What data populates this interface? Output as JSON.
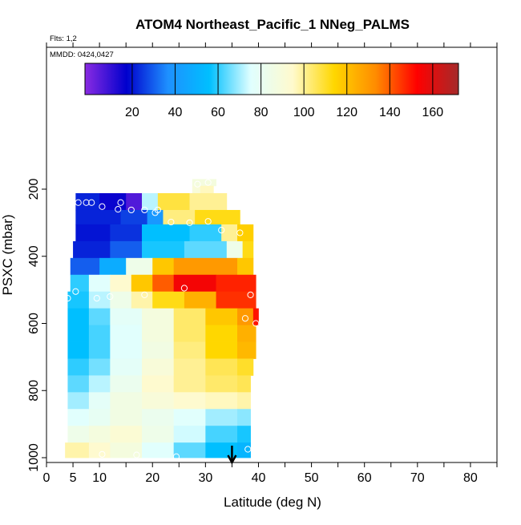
{
  "chart_data": {
    "type": "heatmap",
    "title": "ATOM4 Northeast_Pacific_1 NNeg_PALMS",
    "flights_label": "Flts: 1,2",
    "dates_label": "MMDD: 0424,0427",
    "xlabel": "Latitude (deg N)",
    "ylabel": "PSXC (mbar)",
    "xlim": [
      0,
      85
    ],
    "ylim": [
      1000,
      130
    ],
    "x_ticks": [
      0,
      5,
      10,
      20,
      30,
      40,
      50,
      60,
      70,
      80
    ],
    "y_ticks": [
      200,
      400,
      600,
      800,
      1000
    ],
    "colorbar": {
      "range": [
        -2,
        172
      ],
      "ticks": [
        20,
        40,
        60,
        80,
        100,
        120,
        140,
        160
      ],
      "colors": [
        "#8a2be2",
        "#0000cd",
        "#1e90ff",
        "#00bfff",
        "#e0ffff",
        "#fffacd",
        "#ffd700",
        "#ff8c00",
        "#ff0000",
        "#a52a2a"
      ]
    },
    "marker_latitude": 35,
    "grid": false,
    "bands": [
      {
        "p_top": 170,
        "p_bot": 190,
        "segments": [
          {
            "lat0": 27.5,
            "lat1": 32,
            "val": 88
          }
        ]
      },
      {
        "p_top": 190,
        "p_bot": 212,
        "segments": [
          {
            "lat0": 27.5,
            "lat1": 29,
            "val": 90
          },
          {
            "lat0": 29,
            "lat1": 31.5,
            "val": 96
          }
        ]
      },
      {
        "p_top": 212,
        "p_bot": 262,
        "segments": [
          {
            "lat0": 5.5,
            "lat1": 10,
            "val": 22
          },
          {
            "lat0": 10,
            "lat1": 15,
            "val": 16
          },
          {
            "lat0": 15,
            "lat1": 18,
            "val": 6
          },
          {
            "lat0": 18,
            "lat1": 21,
            "val": 72
          },
          {
            "lat0": 21,
            "lat1": 27,
            "val": 108
          },
          {
            "lat0": 27,
            "lat1": 34,
            "val": 100
          }
        ]
      },
      {
        "p_top": 262,
        "p_bot": 305,
        "segments": [
          {
            "lat0": 5.5,
            "lat1": 14,
            "val": 22
          },
          {
            "lat0": 14,
            "lat1": 19,
            "val": 26
          },
          {
            "lat0": 19,
            "lat1": 22,
            "val": 40
          },
          {
            "lat0": 22,
            "lat1": 28,
            "val": 102
          },
          {
            "lat0": 28,
            "lat1": 36.5,
            "val": 112
          }
        ]
      },
      {
        "p_top": 305,
        "p_bot": 355,
        "segments": [
          {
            "lat0": 5.5,
            "lat1": 12,
            "val": 20
          },
          {
            "lat0": 12,
            "lat1": 18,
            "val": 24
          },
          {
            "lat0": 18,
            "lat1": 27,
            "val": 56
          },
          {
            "lat0": 27,
            "lat1": 33,
            "val": 60
          },
          {
            "lat0": 33,
            "lat1": 36,
            "val": 100
          },
          {
            "lat0": 36,
            "lat1": 39,
            "val": 116
          }
        ]
      },
      {
        "p_top": 355,
        "p_bot": 405,
        "segments": [
          {
            "lat0": 5,
            "lat1": 12,
            "val": 22
          },
          {
            "lat0": 12,
            "lat1": 18,
            "val": 30
          },
          {
            "lat0": 18,
            "lat1": 26,
            "val": 58
          },
          {
            "lat0": 26,
            "lat1": 34,
            "val": 64
          },
          {
            "lat0": 34,
            "lat1": 37,
            "val": 84
          },
          {
            "lat0": 37,
            "lat1": 39,
            "val": 112
          }
        ]
      },
      {
        "p_top": 405,
        "p_bot": 455,
        "segments": [
          {
            "lat0": 4.5,
            "lat1": 10,
            "val": 30
          },
          {
            "lat0": 10,
            "lat1": 15,
            "val": 48
          },
          {
            "lat0": 15,
            "lat1": 20,
            "val": 84
          },
          {
            "lat0": 20,
            "lat1": 24,
            "val": 118
          },
          {
            "lat0": 24,
            "lat1": 36,
            "val": 130
          },
          {
            "lat0": 36,
            "lat1": 39,
            "val": 118
          }
        ]
      },
      {
        "p_top": 455,
        "p_bot": 505,
        "segments": [
          {
            "lat0": 4.5,
            "lat1": 8,
            "val": 60
          },
          {
            "lat0": 8,
            "lat1": 12,
            "val": 76
          },
          {
            "lat0": 12,
            "lat1": 16,
            "val": 94
          },
          {
            "lat0": 16,
            "lat1": 20,
            "val": 118
          },
          {
            "lat0": 20,
            "lat1": 24,
            "val": 140
          },
          {
            "lat0": 24,
            "lat1": 32,
            "val": 155
          },
          {
            "lat0": 32,
            "lat1": 39.5,
            "val": 148
          }
        ]
      },
      {
        "p_top": 505,
        "p_bot": 555,
        "segments": [
          {
            "lat0": 4,
            "lat1": 8,
            "val": 58
          },
          {
            "lat0": 8,
            "lat1": 12,
            "val": 72
          },
          {
            "lat0": 12,
            "lat1": 16,
            "val": 84
          },
          {
            "lat0": 16,
            "lat1": 20,
            "val": 98
          },
          {
            "lat0": 20,
            "lat1": 26,
            "val": 112
          },
          {
            "lat0": 26,
            "lat1": 32,
            "val": 124
          },
          {
            "lat0": 32,
            "lat1": 39.5,
            "val": 146
          }
        ]
      },
      {
        "p_top": 555,
        "p_bot": 605,
        "segments": [
          {
            "lat0": 4,
            "lat1": 8,
            "val": 56
          },
          {
            "lat0": 8,
            "lat1": 12,
            "val": 64
          },
          {
            "lat0": 12,
            "lat1": 18,
            "val": 78
          },
          {
            "lat0": 18,
            "lat1": 24,
            "val": 88
          },
          {
            "lat0": 24,
            "lat1": 30,
            "val": 104
          },
          {
            "lat0": 30,
            "lat1": 36,
            "val": 118
          },
          {
            "lat0": 36,
            "lat1": 39,
            "val": 130
          },
          {
            "lat0": 39,
            "lat1": 40,
            "val": 150
          }
        ]
      },
      {
        "p_top": 605,
        "p_bot": 655,
        "segments": [
          {
            "lat0": 4,
            "lat1": 8,
            "val": 56
          },
          {
            "lat0": 8,
            "lat1": 12,
            "val": 62
          },
          {
            "lat0": 12,
            "lat1": 18,
            "val": 76
          },
          {
            "lat0": 18,
            "lat1": 24,
            "val": 88
          },
          {
            "lat0": 24,
            "lat1": 30,
            "val": 104
          },
          {
            "lat0": 30,
            "lat1": 36,
            "val": 114
          },
          {
            "lat0": 36,
            "lat1": 39.5,
            "val": 124
          }
        ]
      },
      {
        "p_top": 655,
        "p_bot": 705,
        "segments": [
          {
            "lat0": 4,
            "lat1": 8,
            "val": 56
          },
          {
            "lat0": 8,
            "lat1": 12,
            "val": 62
          },
          {
            "lat0": 12,
            "lat1": 18,
            "val": 76
          },
          {
            "lat0": 18,
            "lat1": 24,
            "val": 86
          },
          {
            "lat0": 24,
            "lat1": 30,
            "val": 102
          },
          {
            "lat0": 30,
            "lat1": 36,
            "val": 114
          },
          {
            "lat0": 36,
            "lat1": 39.5,
            "val": 122
          }
        ]
      },
      {
        "p_top": 705,
        "p_bot": 755,
        "segments": [
          {
            "lat0": 4,
            "lat1": 8,
            "val": 60
          },
          {
            "lat0": 8,
            "lat1": 12,
            "val": 66
          },
          {
            "lat0": 12,
            "lat1": 18,
            "val": 78
          },
          {
            "lat0": 18,
            "lat1": 24,
            "val": 90
          },
          {
            "lat0": 24,
            "lat1": 30,
            "val": 100
          },
          {
            "lat0": 30,
            "lat1": 36,
            "val": 106
          },
          {
            "lat0": 36,
            "lat1": 39,
            "val": 110
          }
        ]
      },
      {
        "p_top": 755,
        "p_bot": 805,
        "segments": [
          {
            "lat0": 4,
            "lat1": 8,
            "val": 64
          },
          {
            "lat0": 8,
            "lat1": 12,
            "val": 72
          },
          {
            "lat0": 12,
            "lat1": 18,
            "val": 82
          },
          {
            "lat0": 18,
            "lat1": 24,
            "val": 94
          },
          {
            "lat0": 24,
            "lat1": 30,
            "val": 100
          },
          {
            "lat0": 30,
            "lat1": 36,
            "val": 104
          },
          {
            "lat0": 36,
            "lat1": 38.5,
            "val": 106
          }
        ]
      },
      {
        "p_top": 805,
        "p_bot": 855,
        "segments": [
          {
            "lat0": 4,
            "lat1": 8,
            "val": 70
          },
          {
            "lat0": 8,
            "lat1": 12,
            "val": 78
          },
          {
            "lat0": 12,
            "lat1": 18,
            "val": 86
          },
          {
            "lat0": 18,
            "lat1": 24,
            "val": 90
          },
          {
            "lat0": 24,
            "lat1": 30,
            "val": 94
          },
          {
            "lat0": 30,
            "lat1": 36,
            "val": 96
          },
          {
            "lat0": 36,
            "lat1": 38.5,
            "val": 98
          }
        ]
      },
      {
        "p_top": 855,
        "p_bot": 905,
        "segments": [
          {
            "lat0": 4,
            "lat1": 8,
            "val": 76
          },
          {
            "lat0": 8,
            "lat1": 12,
            "val": 80
          },
          {
            "lat0": 12,
            "lat1": 18,
            "val": 86
          },
          {
            "lat0": 18,
            "lat1": 24,
            "val": 82
          },
          {
            "lat0": 24,
            "lat1": 30,
            "val": 76
          },
          {
            "lat0": 30,
            "lat1": 36,
            "val": 70
          },
          {
            "lat0": 36,
            "lat1": 38.5,
            "val": 68
          }
        ]
      },
      {
        "p_top": 905,
        "p_bot": 955,
        "segments": [
          {
            "lat0": 4,
            "lat1": 8,
            "val": 84
          },
          {
            "lat0": 8,
            "lat1": 12,
            "val": 88
          },
          {
            "lat0": 12,
            "lat1": 18,
            "val": 92
          },
          {
            "lat0": 18,
            "lat1": 24,
            "val": 84
          },
          {
            "lat0": 24,
            "lat1": 30,
            "val": 74
          },
          {
            "lat0": 30,
            "lat1": 36,
            "val": 62
          },
          {
            "lat0": 36,
            "lat1": 38.5,
            "val": 58
          }
        ]
      },
      {
        "p_top": 955,
        "p_bot": 1000,
        "segments": [
          {
            "lat0": 3.5,
            "lat1": 8,
            "val": 98
          },
          {
            "lat0": 8,
            "lat1": 12,
            "val": 94
          },
          {
            "lat0": 12,
            "lat1": 18,
            "val": 88
          },
          {
            "lat0": 18,
            "lat1": 24,
            "val": 76
          },
          {
            "lat0": 24,
            "lat1": 30,
            "val": 64
          },
          {
            "lat0": 30,
            "lat1": 36,
            "val": 56
          },
          {
            "lat0": 36,
            "lat1": 38.5,
            "val": 52
          }
        ]
      }
    ],
    "points": [
      {
        "lat": 28.5,
        "p": 185
      },
      {
        "lat": 30.5,
        "p": 180
      },
      {
        "lat": 6,
        "p": 240
      },
      {
        "lat": 7.5,
        "p": 240
      },
      {
        "lat": 8.5,
        "p": 240
      },
      {
        "lat": 10.5,
        "p": 252
      },
      {
        "lat": 14,
        "p": 240
      },
      {
        "lat": 13.5,
        "p": 260
      },
      {
        "lat": 16,
        "p": 262
      },
      {
        "lat": 18.5,
        "p": 262
      },
      {
        "lat": 20.5,
        "p": 270
      },
      {
        "lat": 21,
        "p": 262
      },
      {
        "lat": 23.5,
        "p": 298
      },
      {
        "lat": 27,
        "p": 300
      },
      {
        "lat": 30.5,
        "p": 296
      },
      {
        "lat": 33,
        "p": 322
      },
      {
        "lat": 36.5,
        "p": 330
      },
      {
        "lat": 5.5,
        "p": 505
      },
      {
        "lat": 26,
        "p": 495
      },
      {
        "lat": 4,
        "p": 525
      },
      {
        "lat": 9.5,
        "p": 525
      },
      {
        "lat": 12,
        "p": 520
      },
      {
        "lat": 18.5,
        "p": 515
      },
      {
        "lat": 38.5,
        "p": 515
      },
      {
        "lat": 37.5,
        "p": 585
      },
      {
        "lat": 39.5,
        "p": 600
      },
      {
        "lat": 38,
        "p": 975
      },
      {
        "lat": 10.5,
        "p": 990
      },
      {
        "lat": 17,
        "p": 992
      },
      {
        "lat": 24.5,
        "p": 997
      }
    ]
  }
}
